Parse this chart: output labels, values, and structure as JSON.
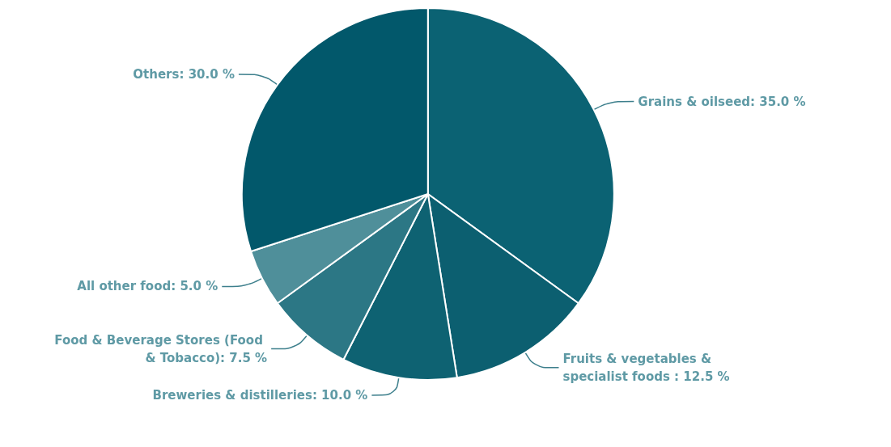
{
  "chart_data": {
    "type": "pie",
    "categories": [
      "Grains & oilseed",
      "Fruits & vegetables & specialist foods ",
      "Breweries & distilleries",
      "Food & Beverage Stores (Food & Tobacco)",
      "All other food",
      "Others"
    ],
    "values": [
      35.0,
      12.5,
      10.0,
      7.5,
      5.0,
      30.0
    ],
    "value_labels": [
      "35.0 %",
      "12.5 %",
      "10.0 %",
      "7.5 %",
      "5.0 %",
      "30.0 %"
    ],
    "colors": [
      "#0b6273",
      "#0c5f70",
      "#0e6272",
      "#2c7785",
      "#4f8f9a",
      "#02586b"
    ]
  }
}
